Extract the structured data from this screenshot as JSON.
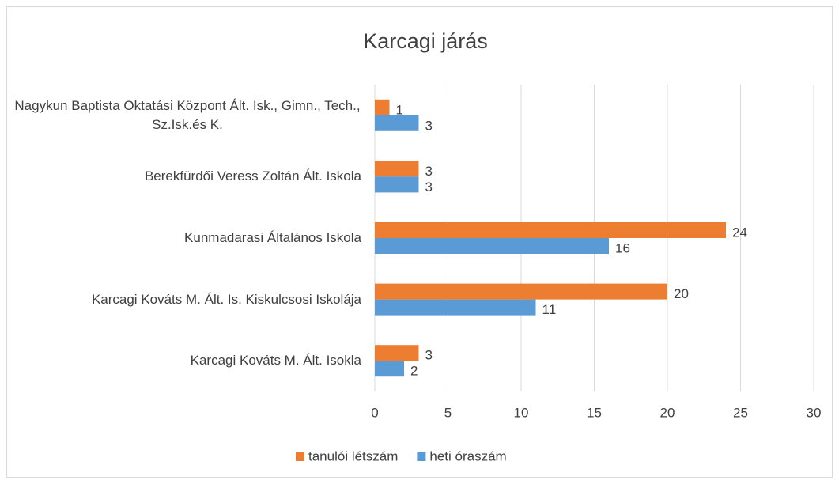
{
  "chart_data": {
    "type": "hbar",
    "title": "Karcagi járás",
    "categories": [
      "Nagykun Baptista Oktatási Központ Ált. Isk., Gimn., Tech., Sz.Isk.és K.",
      "Berekfürdői Veress Zoltán Ált. Iskola",
      "Kunmadarasi Általános Iskola",
      "Karcagi Kováts M. Ált. Is. Kiskulcsosi Iskolája",
      "Karcagi Kováts M. Ált. Isokla"
    ],
    "series": [
      {
        "name": "tanulói létszám",
        "color": "#ed7d31",
        "values": [
          1,
          3,
          24,
          20,
          3
        ]
      },
      {
        "name": "heti óraszám",
        "color": "#5b9bd5",
        "values": [
          3,
          3,
          16,
          11,
          2
        ]
      }
    ],
    "xlim": [
      0,
      30
    ],
    "xticks": [
      0,
      5,
      10,
      15,
      20,
      25,
      30
    ],
    "grid": true,
    "legend": "bottom"
  }
}
